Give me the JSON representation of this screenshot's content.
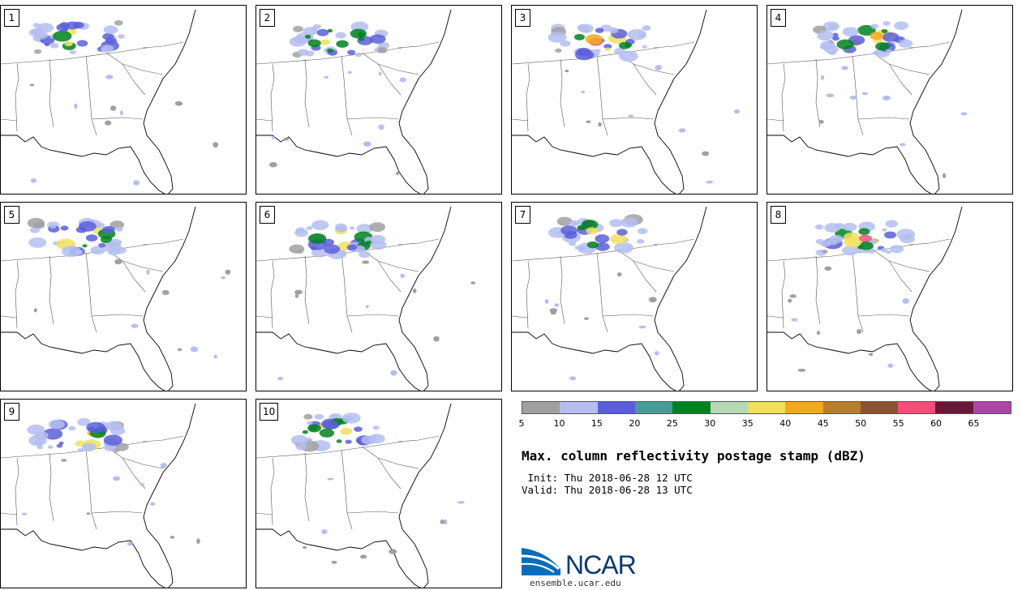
{
  "panels": [
    {
      "label": "1"
    },
    {
      "label": "2"
    },
    {
      "label": "3"
    },
    {
      "label": "4"
    },
    {
      "label": "5"
    },
    {
      "label": "6"
    },
    {
      "label": "7"
    },
    {
      "label": "8"
    },
    {
      "label": "9"
    },
    {
      "label": "10"
    }
  ],
  "colorbar": {
    "ticks": [
      "5",
      "10",
      "15",
      "20",
      "25",
      "30",
      "35",
      "40",
      "45",
      "50",
      "55",
      "60",
      "65"
    ],
    "colors": [
      "#a0a0a0",
      "#b4bef0",
      "#5a5fd8",
      "#4a9a9a",
      "#00821f",
      "#b4dab4",
      "#f0e060",
      "#f0aa20",
      "#b87e30",
      "#8c5232",
      "#f05078",
      "#6a1838",
      "#aa46aa"
    ]
  },
  "title": "Max. column reflectivity postage stamp (dBZ)",
  "init": " Init: Thu 2018-06-28 12 UTC",
  "valid": "Valid: Thu 2018-06-28 13 UTC",
  "logo": {
    "text": "NCAR",
    "url": "ensemble.ucar.edu"
  }
}
